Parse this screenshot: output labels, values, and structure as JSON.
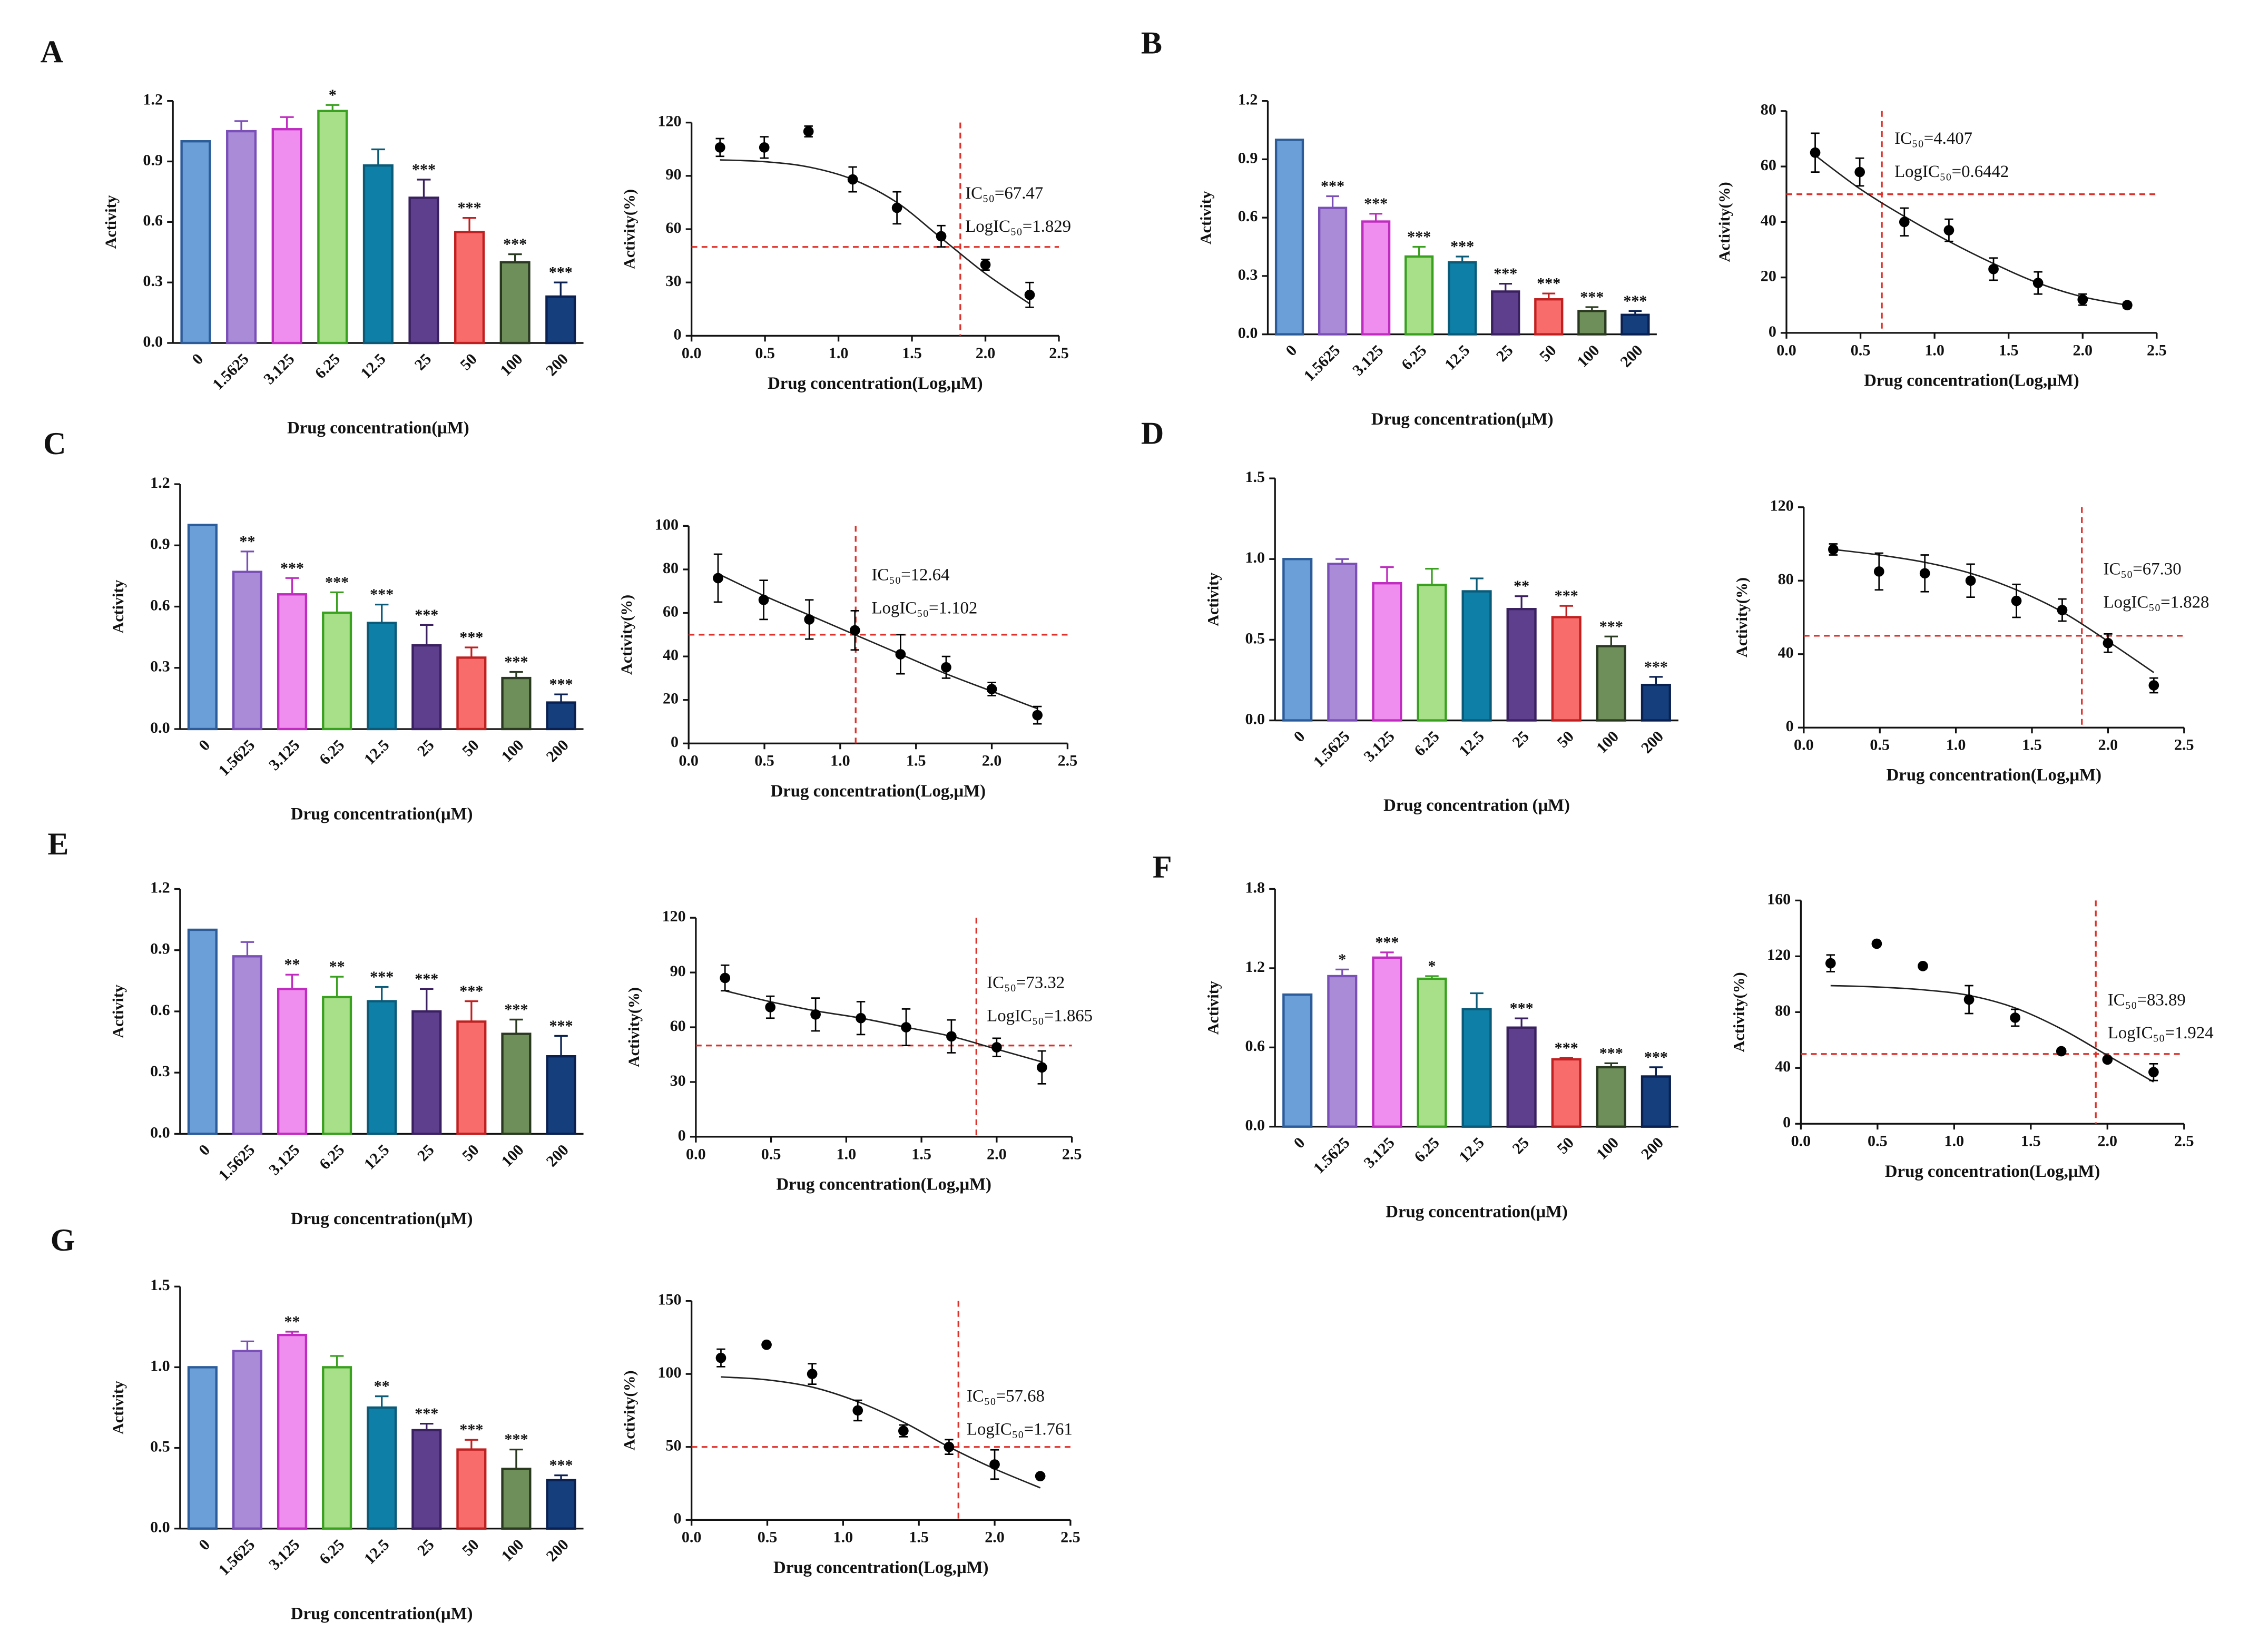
{
  "chart_data": [
    {
      "type": "bar",
      "panel": "A",
      "y_label": "Activity",
      "x_label": "Drug concentration(μM)",
      "categories": [
        "0",
        "1.5625",
        "3.125",
        "6.25",
        "12.5",
        "25",
        "50",
        "100",
        "200"
      ],
      "values": [
        1.0,
        1.05,
        1.06,
        1.15,
        0.88,
        0.72,
        0.55,
        0.4,
        0.23
      ],
      "errors": [
        0,
        0.05,
        0.06,
        0.03,
        0.08,
        0.09,
        0.07,
        0.04,
        0.07
      ],
      "significance": [
        null,
        null,
        null,
        "*",
        null,
        "***",
        "***",
        "***",
        "***"
      ],
      "colors": [
        "#6a9fd8",
        "#a98bd8",
        "#f08ef0",
        "#a8e08a",
        "#0e7fa6",
        "#5e3f8e",
        "#f86c6c",
        "#6f8f5a",
        "#153f7c"
      ],
      "edge_colors": [
        "#2c5c9a",
        "#7a4fb8",
        "#c02cc0",
        "#3aa020",
        "#0a5a78",
        "#3a2060",
        "#c02020",
        "#2a3a20",
        "#0a2050"
      ],
      "ylim": [
        0,
        1.2
      ],
      "yticks": [
        {
          "value": 0,
          "label": "0.0"
        },
        0.3,
        0.6,
        0.9,
        1.2
      ]
    },
    {
      "type": "scatter",
      "y_label": "Activity(%)",
      "x_label": "Drug concentration(Log,μM)",
      "x": [
        0.194,
        0.495,
        0.796,
        1.097,
        1.398,
        1.699,
        2.0,
        2.301
      ],
      "values": [
        106,
        106,
        115,
        88,
        72,
        56,
        40,
        23
      ],
      "errors": [
        5,
        6,
        3,
        7,
        9,
        6,
        3,
        7
      ],
      "fit": [
        99,
        98,
        95,
        88,
        75,
        55,
        35,
        18
      ],
      "color": "#000000",
      "ref_color": "#e0302a",
      "hline": 50,
      "vline": 1.829,
      "ic50_label": "IC₅₀=67.47",
      "logic50_label": "LogIC₅₀=1.829",
      "xlim": [
        0,
        2.5
      ],
      "xticks": [
        {
          "value": 0,
          "label": "0.0"
        },
        0.5,
        {
          "value": 1,
          "label": "1.0"
        },
        1.5,
        {
          "value": 2,
          "label": "2.0"
        },
        2.5
      ],
      "ylim": [
        0,
        120
      ],
      "yticks": [
        0,
        30,
        60,
        90,
        120
      ]
    },
    {
      "type": "bar",
      "panel": "B",
      "y_label": "Activity",
      "x_label": "Drug concentration(μM)",
      "categories": [
        "0",
        "1.5625",
        "3.125",
        "6.25",
        "12.5",
        "25",
        "50",
        "100",
        "200"
      ],
      "values": [
        1.0,
        0.65,
        0.58,
        0.4,
        0.37,
        0.22,
        0.18,
        0.12,
        0.1
      ],
      "errors": [
        0,
        0.06,
        0.04,
        0.05,
        0.03,
        0.04,
        0.03,
        0.02,
        0.02
      ],
      "significance": [
        null,
        "***",
        "***",
        "***",
        "***",
        "***",
        "***",
        "***",
        "***"
      ],
      "colors": [
        "#6a9fd8",
        "#a98bd8",
        "#f08ef0",
        "#a8e08a",
        "#0e7fa6",
        "#5e3f8e",
        "#f86c6c",
        "#6f8f5a",
        "#153f7c"
      ],
      "edge_colors": [
        "#2c5c9a",
        "#7a4fb8",
        "#c02cc0",
        "#3aa020",
        "#0a5a78",
        "#3a2060",
        "#c02020",
        "#2a3a20",
        "#0a2050"
      ],
      "ylim": [
        0,
        1.2
      ],
      "yticks": [
        {
          "value": 0,
          "label": "0.0"
        },
        0.3,
        0.6,
        0.9,
        1.2
      ]
    },
    {
      "type": "scatter",
      "y_label": "Activity(%)",
      "x_label": "Drug concentration(Log,μM)",
      "x": [
        0.194,
        0.495,
        0.796,
        1.097,
        1.398,
        1.699,
        2.0,
        2.301
      ],
      "values": [
        65,
        58,
        40,
        37,
        23,
        18,
        12,
        10
      ],
      "errors": [
        7,
        5,
        5,
        4,
        4,
        4,
        2,
        1
      ],
      "fit": [
        64,
        52,
        42,
        33,
        25,
        18,
        13,
        10
      ],
      "color": "#000000",
      "ref_color": "#e0302a",
      "hline": 50,
      "vline": 0.6442,
      "ic50_label": "IC₅₀=4.407",
      "logic50_label": "LogIC₅₀=0.6442",
      "xlim": [
        0,
        2.5
      ],
      "xticks": [
        {
          "value": 0,
          "label": "0.0"
        },
        0.5,
        {
          "value": 1,
          "label": "1.0"
        },
        1.5,
        {
          "value": 2,
          "label": "2.0"
        },
        2.5
      ],
      "ylim": [
        0,
        80
      ],
      "yticks": [
        0,
        20,
        40,
        60,
        80
      ]
    },
    {
      "type": "bar",
      "panel": "C",
      "y_label": "Activity",
      "x_label": "Drug concentration(μM)",
      "categories": [
        "0",
        "1.5625",
        "3.125",
        "6.25",
        "12.5",
        "25",
        "50",
        "100",
        "200"
      ],
      "values": [
        1.0,
        0.77,
        0.66,
        0.57,
        0.52,
        0.41,
        0.35,
        0.25,
        0.13
      ],
      "errors": [
        0,
        0.1,
        0.08,
        0.1,
        0.09,
        0.1,
        0.05,
        0.03,
        0.04
      ],
      "significance": [
        null,
        "**",
        "***",
        "***",
        "***",
        "***",
        "***",
        "***",
        "***"
      ],
      "colors": [
        "#6a9fd8",
        "#a98bd8",
        "#f08ef0",
        "#a8e08a",
        "#0e7fa6",
        "#5e3f8e",
        "#f86c6c",
        "#6f8f5a",
        "#153f7c"
      ],
      "edge_colors": [
        "#2c5c9a",
        "#7a4fb8",
        "#c02cc0",
        "#3aa020",
        "#0a5a78",
        "#3a2060",
        "#c02020",
        "#2a3a20",
        "#0a2050"
      ],
      "ylim": [
        0,
        1.2
      ],
      "yticks": [
        {
          "value": 0,
          "label": "0.0"
        },
        0.3,
        0.6,
        0.9,
        1.2
      ]
    },
    {
      "type": "scatter",
      "y_label": "Activity(%)",
      "x_label": "Drug concentration(Log,μM)",
      "x": [
        0.194,
        0.495,
        0.796,
        1.097,
        1.398,
        1.699,
        2.0,
        2.301
      ],
      "values": [
        76,
        66,
        57,
        52,
        41,
        35,
        25,
        13
      ],
      "errors": [
        11,
        9,
        9,
        9,
        9,
        5,
        3,
        4
      ],
      "fit": [
        78,
        68,
        59,
        50,
        41,
        32,
        24,
        16
      ],
      "color": "#000000",
      "ref_color": "#e0302a",
      "hline": 50,
      "vline": 1.102,
      "ic50_label": "IC₅₀=12.64",
      "logic50_label": "LogIC₅₀=1.102",
      "xlim": [
        0,
        2.5
      ],
      "xticks": [
        {
          "value": 0,
          "label": "0.0"
        },
        0.5,
        {
          "value": 1,
          "label": "1.0"
        },
        1.5,
        {
          "value": 2,
          "label": "2.0"
        },
        2.5
      ],
      "ylim": [
        0,
        100
      ],
      "yticks": [
        0,
        20,
        40,
        60,
        80,
        100
      ]
    },
    {
      "type": "bar",
      "panel": "D",
      "y_label": "Activity",
      "x_label": "Drug concentration (μM)",
      "categories": [
        "0",
        "1.5625",
        "3.125",
        "6.25",
        "12.5",
        "25",
        "50",
        "100",
        "200"
      ],
      "values": [
        1.0,
        0.97,
        0.85,
        0.84,
        0.8,
        0.69,
        0.64,
        0.46,
        0.22
      ],
      "errors": [
        0,
        0.03,
        0.1,
        0.1,
        0.08,
        0.08,
        0.07,
        0.06,
        0.05
      ],
      "significance": [
        null,
        null,
        null,
        null,
        null,
        "**",
        "***",
        "***",
        "***"
      ],
      "colors": [
        "#6a9fd8",
        "#a98bd8",
        "#f08ef0",
        "#a8e08a",
        "#0e7fa6",
        "#5e3f8e",
        "#f86c6c",
        "#6f8f5a",
        "#153f7c"
      ],
      "edge_colors": [
        "#2c5c9a",
        "#7a4fb8",
        "#c02cc0",
        "#3aa020",
        "#0a5a78",
        "#3a2060",
        "#c02020",
        "#2a3a20",
        "#0a2050"
      ],
      "ylim": [
        0,
        1.5
      ],
      "yticks": [
        {
          "value": 0,
          "label": "0.0"
        },
        0.5,
        {
          "value": 1,
          "label": "1.0"
        },
        1.5
      ]
    },
    {
      "type": "scatter",
      "y_label": "Activity(%)",
      "x_label": "Drug concentration(Log,μM)",
      "x": [
        0.194,
        0.495,
        0.796,
        1.097,
        1.398,
        1.699,
        2.0,
        2.301
      ],
      "values": [
        97,
        85,
        84,
        80,
        69,
        64,
        46,
        23
      ],
      "errors": [
        3,
        10,
        10,
        9,
        9,
        6,
        5,
        4
      ],
      "fit": [
        97,
        94,
        90,
        84,
        75,
        63,
        47,
        30
      ],
      "color": "#000000",
      "ref_color": "#e0302a",
      "hline": 50,
      "vline": 1.828,
      "ic50_label": "IC₅₀=67.30",
      "logic50_label": "LogIC₅₀=1.828",
      "xlim": [
        0,
        2.5
      ],
      "xticks": [
        {
          "value": 0,
          "label": "0.0"
        },
        0.5,
        {
          "value": 1,
          "label": "1.0"
        },
        1.5,
        {
          "value": 2,
          "label": "2.0"
        },
        2.5
      ],
      "ylim": [
        0,
        120
      ],
      "yticks": [
        0,
        40,
        80,
        120
      ]
    },
    {
      "type": "bar",
      "panel": "E",
      "y_label": "Activity",
      "x_label": "Drug concentration(μM)",
      "categories": [
        "0",
        "1.5625",
        "3.125",
        "6.25",
        "12.5",
        "25",
        "50",
        "100",
        "200"
      ],
      "values": [
        1.0,
        0.87,
        0.71,
        0.67,
        0.65,
        0.6,
        0.55,
        0.49,
        0.38
      ],
      "errors": [
        0,
        0.07,
        0.07,
        0.1,
        0.07,
        0.11,
        0.1,
        0.07,
        0.1
      ],
      "significance": [
        null,
        null,
        "**",
        "**",
        "***",
        "***",
        "***",
        "***",
        "***"
      ],
      "colors": [
        "#6a9fd8",
        "#a98bd8",
        "#f08ef0",
        "#a8e08a",
        "#0e7fa6",
        "#5e3f8e",
        "#f86c6c",
        "#6f8f5a",
        "#153f7c"
      ],
      "edge_colors": [
        "#2c5c9a",
        "#7a4fb8",
        "#c02cc0",
        "#3aa020",
        "#0a5a78",
        "#3a2060",
        "#c02020",
        "#2a3a20",
        "#0a2050"
      ],
      "ylim": [
        0,
        1.2
      ],
      "yticks": [
        {
          "value": 0,
          "label": "0.0"
        },
        0.3,
        0.6,
        0.9,
        1.2
      ]
    },
    {
      "type": "scatter",
      "y_label": "Activity(%)",
      "x_label": "Drug concentration(Log,μM)",
      "x": [
        0.194,
        0.495,
        0.796,
        1.097,
        1.398,
        1.699,
        2.0,
        2.301
      ],
      "values": [
        87,
        71,
        67,
        65,
        60,
        55,
        49,
        38
      ],
      "errors": [
        7,
        6,
        9,
        9,
        10,
        9,
        5,
        9
      ],
      "fit": [
        80,
        74,
        69,
        65,
        60,
        55,
        48,
        41
      ],
      "color": "#000000",
      "ref_color": "#e0302a",
      "hline": 50,
      "vline": 1.865,
      "ic50_label": "IC₅₀=73.32",
      "logic50_label": "LogIC₅₀=1.865",
      "xlim": [
        0,
        2.5
      ],
      "xticks": [
        {
          "value": 0,
          "label": "0.0"
        },
        0.5,
        {
          "value": 1,
          "label": "1.0"
        },
        1.5,
        {
          "value": 2,
          "label": "2.0"
        },
        2.5
      ],
      "ylim": [
        0,
        120
      ],
      "yticks": [
        0,
        30,
        60,
        90,
        120
      ]
    },
    {
      "type": "bar",
      "panel": "F",
      "y_label": "Activity",
      "x_label": "Drug concentration(μM)",
      "categories": [
        "0",
        "1.5625",
        "3.125",
        "6.25",
        "12.5",
        "25",
        "50",
        "100",
        "200"
      ],
      "values": [
        1.0,
        1.14,
        1.28,
        1.12,
        0.89,
        0.75,
        0.51,
        0.45,
        0.38
      ],
      "errors": [
        0,
        0.05,
        0.04,
        0.02,
        0.12,
        0.07,
        0.01,
        0.03,
        0.07
      ],
      "significance": [
        null,
        "*",
        "***",
        "*",
        null,
        "***",
        "***",
        "***",
        "***"
      ],
      "colors": [
        "#6a9fd8",
        "#a98bd8",
        "#f08ef0",
        "#a8e08a",
        "#0e7fa6",
        "#5e3f8e",
        "#f86c6c",
        "#6f8f5a",
        "#153f7c"
      ],
      "edge_colors": [
        "#2c5c9a",
        "#7a4fb8",
        "#c02cc0",
        "#3aa020",
        "#0a5a78",
        "#3a2060",
        "#c02020",
        "#2a3a20",
        "#0a2050"
      ],
      "ylim": [
        0,
        1.8
      ],
      "yticks": [
        {
          "value": 0,
          "label": "0.0"
        },
        0.6,
        1.2,
        1.8
      ]
    },
    {
      "type": "scatter",
      "y_label": "Activity(%)",
      "x_label": "Drug concentration(Log,μM)",
      "x": [
        0.194,
        0.495,
        0.796,
        1.097,
        1.398,
        1.699,
        2.0,
        2.301
      ],
      "values": [
        115,
        129,
        113,
        89,
        76,
        52,
        46,
        37
      ],
      "errors": [
        6,
        0,
        0,
        10,
        6,
        0,
        0,
        6
      ],
      "fit": [
        99,
        98,
        96,
        92,
        83,
        68,
        49,
        30
      ],
      "color": "#000000",
      "ref_color": "#e0302a",
      "hline": 50,
      "vline": 1.924,
      "ic50_label": "IC₅₀=83.89",
      "logic50_label": "LogIC₅₀=1.924",
      "xlim": [
        0,
        2.5
      ],
      "xticks": [
        {
          "value": 0,
          "label": "0.0"
        },
        0.5,
        {
          "value": 1,
          "label": "1.0"
        },
        1.5,
        {
          "value": 2,
          "label": "2.0"
        },
        2.5
      ],
      "ylim": [
        0,
        160
      ],
      "yticks": [
        0,
        40,
        80,
        120,
        160
      ]
    },
    {
      "type": "bar",
      "panel": "G",
      "y_label": "Activity",
      "x_label": "Drug concentration(μM)",
      "categories": [
        "0",
        "1.5625",
        "3.125",
        "6.25",
        "12.5",
        "25",
        "50",
        "100",
        "200"
      ],
      "values": [
        1.0,
        1.1,
        1.2,
        1.0,
        0.75,
        0.61,
        0.49,
        0.37,
        0.3
      ],
      "errors": [
        0,
        0.06,
        0.02,
        0.07,
        0.07,
        0.04,
        0.06,
        0.12,
        0.03
      ],
      "significance": [
        null,
        null,
        "**",
        null,
        "**",
        "***",
        "***",
        "***",
        "***"
      ],
      "colors": [
        "#6a9fd8",
        "#a98bd8",
        "#f08ef0",
        "#a8e08a",
        "#0e7fa6",
        "#5e3f8e",
        "#f86c6c",
        "#6f8f5a",
        "#153f7c"
      ],
      "edge_colors": [
        "#2c5c9a",
        "#7a4fb8",
        "#c02cc0",
        "#3aa020",
        "#0a5a78",
        "#3a2060",
        "#c02020",
        "#2a3a20",
        "#0a2050"
      ],
      "ylim": [
        0,
        1.5
      ],
      "yticks": [
        {
          "value": 0,
          "label": "0.0"
        },
        0.5,
        {
          "value": 1,
          "label": "1.0"
        },
        1.5
      ]
    },
    {
      "type": "scatter",
      "y_label": "Activity(%)",
      "x_label": "Drug concentration(Log,μM)",
      "x": [
        0.194,
        0.495,
        0.796,
        1.097,
        1.398,
        1.699,
        2.0,
        2.301
      ],
      "values": [
        111,
        120,
        100,
        75,
        61,
        50,
        38,
        30
      ],
      "errors": [
        6,
        0,
        7,
        7,
        4,
        5,
        10,
        0
      ],
      "fit": [
        98,
        96,
        91,
        81,
        67,
        50,
        35,
        22
      ],
      "color": "#000000",
      "ref_color": "#e0302a",
      "hline": 50,
      "vline": 1.761,
      "ic50_label": "IC₅₀=57.68",
      "logic50_label": "LogIC₅₀=1.761",
      "xlim": [
        0,
        2.5
      ],
      "xticks": [
        {
          "value": 0,
          "label": "0.0"
        },
        0.5,
        {
          "value": 1,
          "label": "1.0"
        },
        1.5,
        {
          "value": 2,
          "label": "2.0"
        },
        2.5
      ],
      "ylim": [
        0,
        150
      ],
      "yticks": [
        0,
        50,
        100,
        150
      ]
    }
  ]
}
